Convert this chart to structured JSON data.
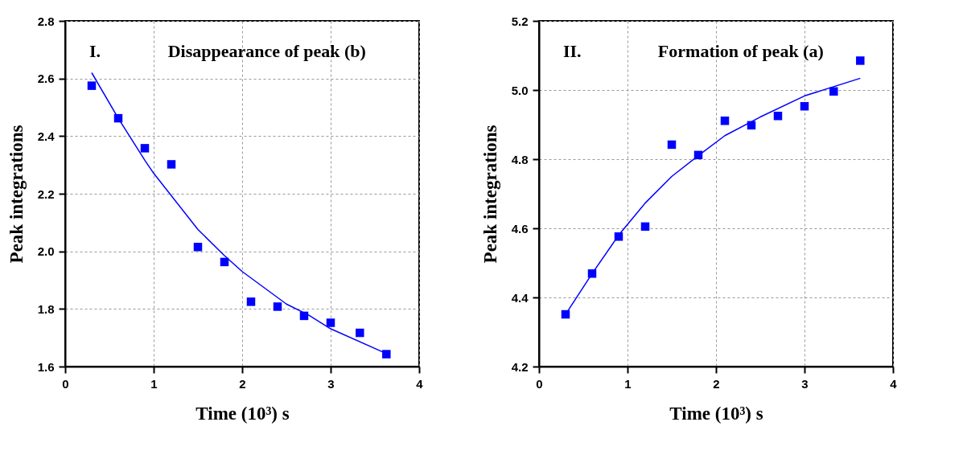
{
  "chart_data": [
    {
      "type": "scatter",
      "title": "Disappearance of peak (b)",
      "annotations": [
        "I."
      ],
      "xlabel": "Time (10³) s",
      "ylabel": "Peak integrations",
      "xlim": [
        0,
        4
      ],
      "xticks": [
        0,
        1,
        2,
        3,
        4
      ],
      "ylim": [
        1.6,
        2.8
      ],
      "yticks": [
        1.6,
        1.8,
        {
          "value": 2,
          "label": "2.0"
        },
        2.2,
        2.4,
        2.6,
        2.8
      ],
      "grid": true,
      "marker": "square",
      "series": [
        {
          "type": "scatter",
          "color": "#0000ff",
          "x": [
            0.3,
            0.6,
            0.9,
            1.2,
            1.5,
            1.8,
            2.1,
            2.4,
            2.7,
            3.0,
            3.33,
            3.63
          ],
          "values": [
            2.575,
            2.462,
            2.358,
            2.302,
            2.015,
            1.963,
            1.825,
            1.808,
            1.776,
            1.752,
            1.717,
            1.643
          ]
        },
        {
          "type": "line",
          "color": "#0000ff",
          "marker": "none",
          "x": [
            0.3,
            0.6,
            0.9,
            1.0,
            1.5,
            1.8,
            2.0,
            2.5,
            2.75,
            3.0,
            3.63
          ],
          "values": [
            2.62,
            2.462,
            2.316,
            2.271,
            2.076,
            1.985,
            1.93,
            1.817,
            1.779,
            1.731,
            1.645
          ]
        }
      ]
    },
    {
      "type": "scatter",
      "title": "Formation of peak (a)",
      "annotations": [
        "II."
      ],
      "xlabel": "Time (10³) s",
      "ylabel": "Peak integrations",
      "xlim": [
        0,
        4
      ],
      "xticks": [
        0,
        1,
        2,
        3,
        4
      ],
      "ylim": [
        4.2,
        5.2
      ],
      "yticks": [
        4.2,
        4.4,
        4.6,
        4.8,
        {
          "value": 5,
          "label": "5.0"
        },
        5.2
      ],
      "grid": true,
      "marker": "square",
      "series": [
        {
          "type": "scatter",
          "color": "#0000ff",
          "x": [
            0.3,
            0.6,
            0.9,
            1.2,
            1.5,
            1.8,
            2.1,
            2.4,
            2.7,
            3.0,
            3.33,
            3.63
          ],
          "values": [
            4.351,
            4.469,
            4.576,
            4.605,
            4.842,
            4.812,
            4.911,
            4.898,
            4.925,
            4.953,
            4.996,
            5.085
          ]
        },
        {
          "type": "line",
          "color": "#0000ff",
          "marker": "none",
          "x": [
            0.3,
            0.6,
            0.9,
            1.2,
            1.5,
            1.8,
            2.1,
            2.5,
            3.0,
            3.63
          ],
          "values": [
            4.351,
            4.469,
            4.58,
            4.673,
            4.75,
            4.81,
            4.868,
            4.922,
            4.983,
            5.034
          ]
        }
      ]
    }
  ]
}
